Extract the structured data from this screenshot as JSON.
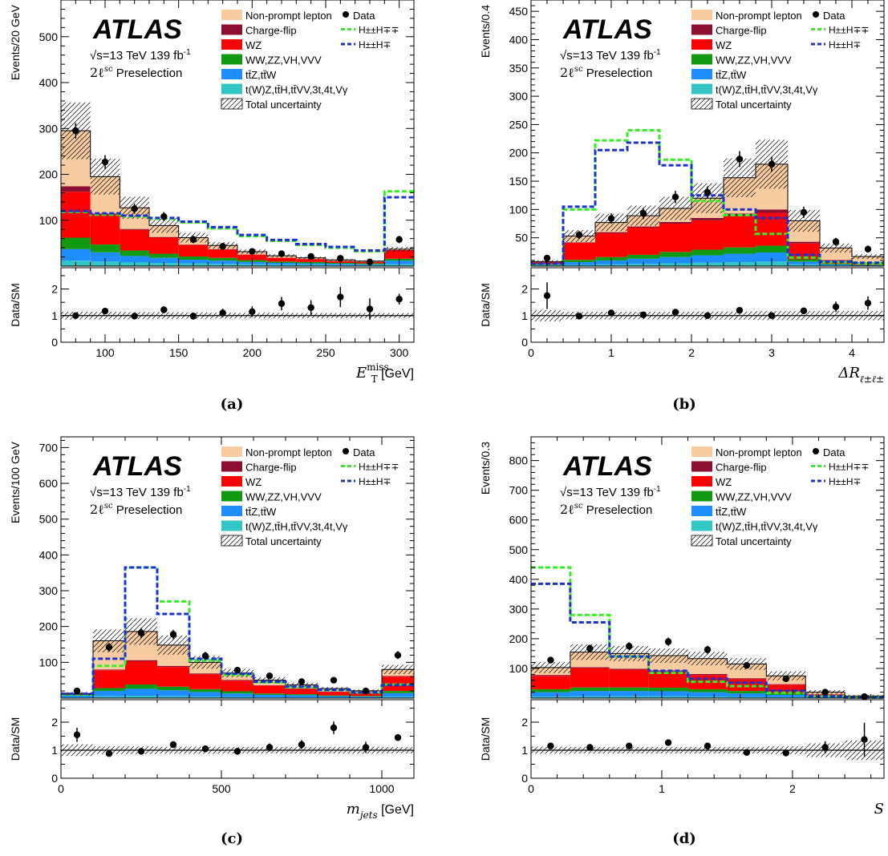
{
  "legend": {
    "atlas": "ATLAS",
    "energy_label": "√s=13 TeV 139 fb",
    "energy_sup": "-1",
    "selection_sym": "2ℓ",
    "selection_sup": "sc",
    "selection_text": "Preselection",
    "data_label": "Data",
    "uncertainty_label": "Total uncertainty",
    "backgrounds": [
      {
        "label": "Non-prompt lepton",
        "color": "#f9cba1"
      },
      {
        "label": "Charge-flip",
        "color": "#8c0f32"
      },
      {
        "label": "WZ",
        "color": "#fe0000"
      },
      {
        "label": "WW,ZZ,VH,VVV",
        "color": "#129912"
      },
      {
        "label": "tt̄Z,tt̄W",
        "color": "#1e8efe"
      },
      {
        "label": "t(W)Z,tt̄H,tt̄VV,3t,4t,Vγ",
        "color": "#33c5c5"
      }
    ],
    "signals": [
      {
        "label": "H±±H∓∓",
        "color": "#33ee22"
      },
      {
        "label": "H±±H∓",
        "color": "#1a33d0"
      }
    ]
  },
  "ratio_ylabel": "Data/SM",
  "chart_data": [
    {
      "type": "bar",
      "panel_label": "(a)",
      "ylabel": "Events/20 GeV",
      "xlabel": {
        "math": "E",
        "sub": "T",
        "sup": "miss",
        "unit": "[GeV]"
      },
      "xlim": [
        70,
        310
      ],
      "ylim": [
        0,
        580
      ],
      "ratio_ylim": [
        0,
        2.8
      ],
      "xticks": [
        100,
        150,
        200,
        250,
        300
      ],
      "xticks_minor": [
        80,
        90,
        110,
        120,
        130,
        140,
        160,
        170,
        180,
        190,
        210,
        220,
        230,
        240,
        260,
        270,
        280,
        290,
        310
      ],
      "yticks": [
        100,
        200,
        300,
        400,
        500
      ],
      "ratio_yticks": [
        0,
        1,
        2
      ],
      "bin_edges": [
        70,
        90,
        110,
        130,
        150,
        170,
        190,
        210,
        230,
        250,
        270,
        290,
        310
      ],
      "stack": [
        {
          "name": "t(W)Z,tt̄H,tt̄VV,3t,4t,Vγ",
          "values": [
            12,
            10,
            8,
            7,
            6,
            5,
            4,
            3,
            3,
            2,
            2,
            4
          ]
        },
        {
          "name": "tt̄Z,tt̄W",
          "values": [
            25,
            20,
            14,
            11,
            8,
            7,
            5,
            4,
            3,
            3,
            2,
            8
          ]
        },
        {
          "name": "WW,ZZ,VH,VVV",
          "values": [
            25,
            17,
            12,
            9,
            7,
            6,
            4,
            3,
            3,
            2,
            2,
            4
          ]
        },
        {
          "name": "WZ",
          "values": [
            100,
            65,
            45,
            35,
            25,
            18,
            12,
            8,
            6,
            4,
            3,
            18
          ]
        },
        {
          "name": "Charge-flip",
          "values": [
            12,
            3,
            2,
            1.5,
            1,
            1,
            0.5,
            0.5,
            0.5,
            0.5,
            0.5,
            1
          ]
        },
        {
          "name": "Non-prompt lepton",
          "values": [
            121,
            80,
            46,
            25,
            15,
            8,
            6,
            4,
            2.5,
            2,
            1.5,
            2
          ]
        }
      ],
      "uncertainty_frac": [
        0.21,
        0.2,
        0.19,
        0.18,
        0.17,
        0.16,
        0.15,
        0.15,
        0.14,
        0.14,
        0.14,
        0.13
      ],
      "signals": [
        {
          "name": "H±±H∓∓",
          "values": [
            118,
            112,
            108,
            103,
            95,
            82,
            65,
            55,
            46,
            40,
            32,
            163
          ]
        },
        {
          "name": "H±±H∓",
          "values": [
            120,
            115,
            110,
            105,
            97,
            85,
            68,
            57,
            48,
            42,
            34,
            150
          ]
        }
      ],
      "data": {
        "x": [
          80,
          100,
          120,
          140,
          160,
          180,
          200,
          220,
          240,
          260,
          280,
          300
        ],
        "y": [
          295,
          227,
          125,
          108,
          58,
          43,
          32,
          27,
          21,
          17,
          9,
          58
        ],
        "yerr": [
          17,
          15,
          11,
          10,
          8,
          7,
          6,
          5,
          5,
          4,
          3,
          8
        ]
      },
      "ratio": {
        "y": [
          1.0,
          1.17,
          0.98,
          1.22,
          0.98,
          1.1,
          1.15,
          1.45,
          1.3,
          1.7,
          1.25,
          1.62
        ],
        "yerr": [
          0.06,
          0.08,
          0.09,
          0.11,
          0.13,
          0.16,
          0.2,
          0.25,
          0.28,
          0.38,
          0.4,
          0.2
        ]
      }
    },
    {
      "type": "bar",
      "panel_label": "(b)",
      "ylabel": "Events/0.4",
      "xlabel": {
        "math": "ΔR",
        "sub": "ℓ±ℓ±",
        "sup": "",
        "unit": ""
      },
      "xlim": [
        0,
        4.4
      ],
      "ylim": [
        0,
        470
      ],
      "ratio_ylim": [
        0,
        2.8
      ],
      "xticks": [
        0,
        1,
        2,
        3,
        4
      ],
      "xticks_minor": [
        0.2,
        0.4,
        0.6,
        0.8,
        1.2,
        1.4,
        1.6,
        1.8,
        2.2,
        2.4,
        2.6,
        2.8,
        3.2,
        3.4,
        3.6,
        3.8,
        4.2
      ],
      "yticks": [
        50,
        100,
        150,
        200,
        250,
        300,
        350,
        400,
        450
      ],
      "ratio_yticks": [
        0,
        1,
        2
      ],
      "bin_edges": [
        0,
        0.4,
        0.8,
        1.2,
        1.6,
        2.0,
        2.4,
        2.8,
        3.2,
        3.6,
        4.0,
        4.4
      ],
      "stack": [
        {
          "name": "t(W)Z,tt̄H,tt̄VV,3t,4t,Vγ",
          "values": [
            1,
            2,
            3,
            4,
            5,
            6,
            7,
            8,
            3,
            1,
            0.5
          ]
        },
        {
          "name": "tt̄Z,tt̄W",
          "values": [
            2,
            5,
            7,
            9,
            11,
            13,
            15,
            16,
            5,
            2,
            1
          ]
        },
        {
          "name": "WW,ZZ,VH,VVV",
          "values": [
            1,
            4,
            6,
            7,
            9,
            10,
            11,
            12,
            4,
            1.5,
            1
          ]
        },
        {
          "name": "WZ",
          "values": [
            3,
            30,
            42,
            48,
            50,
            52,
            55,
            58,
            28,
            6,
            3
          ]
        },
        {
          "name": "Charge-flip",
          "values": [
            0.2,
            1,
            2,
            2,
            3,
            4,
            5,
            6,
            3,
            0.5,
            0.3
          ]
        },
        {
          "name": "Non-prompt lepton",
          "values": [
            0.8,
            11,
            17,
            19,
            24,
            35,
            63,
            80,
            37,
            21,
            11
          ]
        }
      ],
      "uncertainty_frac": [
        0.3,
        0.2,
        0.2,
        0.2,
        0.2,
        0.22,
        0.22,
        0.24,
        0.24,
        0.25,
        0.25
      ],
      "signals": [
        {
          "name": "H±±H∓∓",
          "values": [
            3,
            100,
            222,
            240,
            188,
            115,
            90,
            57,
            15,
            7,
            5
          ]
        },
        {
          "name": "H±±H∓",
          "values": [
            4,
            105,
            205,
            218,
            178,
            125,
            100,
            85,
            20,
            8,
            6
          ]
        }
      ],
      "data": {
        "x": [
          0.2,
          0.6,
          1.0,
          1.4,
          1.8,
          2.2,
          2.6,
          3.0,
          3.4,
          3.8,
          4.2
        ],
        "y": [
          14,
          55,
          84,
          93,
          122,
          130,
          189,
          180,
          95,
          43,
          30
        ],
        "yerr": [
          4,
          7,
          9,
          10,
          11,
          11,
          14,
          13,
          10,
          7,
          6
        ]
      },
      "ratio": {
        "y": [
          1.75,
          0.98,
          1.1,
          1.03,
          1.13,
          1.0,
          1.2,
          1.0,
          1.18,
          1.33,
          1.47
        ],
        "yerr": [
          0.5,
          0.12,
          0.1,
          0.1,
          0.1,
          0.09,
          0.08,
          0.07,
          0.12,
          0.2,
          0.25
        ]
      }
    },
    {
      "type": "bar",
      "panel_label": "(c)",
      "ylabel": "Events/100 GeV",
      "xlabel": {
        "math": "m",
        "sub": "jets",
        "sup": "",
        "unit": "[GeV]"
      },
      "xlim": [
        0,
        1100
      ],
      "ylim": [
        0,
        730
      ],
      "ratio_ylim": [
        0,
        2.8
      ],
      "xticks": [
        0,
        500,
        1000
      ],
      "xticks_minor": [
        100,
        200,
        300,
        400,
        600,
        700,
        800,
        900
      ],
      "yticks": [
        100,
        200,
        300,
        400,
        500,
        600,
        700
      ],
      "ratio_yticks": [
        0,
        1,
        2
      ],
      "bin_edges": [
        0,
        100,
        200,
        300,
        400,
        500,
        600,
        700,
        800,
        900,
        1000,
        1100
      ],
      "stack": [
        {
          "name": "t(W)Z,tt̄H,tt̄VV,3t,4t,Vγ",
          "values": [
            2,
            5,
            6,
            5,
            4,
            3,
            2,
            2,
            1.5,
            1,
            4
          ]
        },
        {
          "name": "tt̄Z,tt̄W",
          "values": [
            5,
            15,
            20,
            17,
            13,
            10,
            7,
            6,
            4,
            3,
            10
          ]
        },
        {
          "name": "WW,ZZ,VH,VVV",
          "values": [
            3,
            8,
            12,
            10,
            8,
            6,
            4,
            3,
            2,
            2,
            6
          ]
        },
        {
          "name": "WZ",
          "values": [
            2,
            50,
            65,
            55,
            42,
            30,
            22,
            15,
            10,
            8,
            40
          ]
        },
        {
          "name": "Charge-flip",
          "values": [
            0.2,
            2,
            3,
            3,
            2,
            2,
            1,
            1,
            1,
            0.5,
            2
          ]
        },
        {
          "name": "Non-prompt lepton",
          "values": [
            0.8,
            80,
            80,
            58,
            31,
            19,
            14,
            10,
            8,
            6,
            18
          ]
        }
      ],
      "uncertainty_frac": [
        0.3,
        0.2,
        0.2,
        0.18,
        0.18,
        0.17,
        0.17,
        0.17,
        0.17,
        0.18,
        0.16
      ],
      "signals": [
        {
          "name": "H±±H∓∓",
          "values": [
            10,
            90,
            365,
            270,
            105,
            65,
            44,
            30,
            22,
            15,
            38
          ]
        },
        {
          "name": "H±±H∓",
          "values": [
            12,
            110,
            365,
            235,
            110,
            68,
            46,
            32,
            23,
            16,
            36
          ]
        }
      ],
      "data": {
        "x": [
          50,
          150,
          250,
          350,
          450,
          550,
          650,
          750,
          850,
          950,
          1050
        ],
        "y": [
          20,
          142,
          182,
          178,
          118,
          78,
          62,
          46,
          50,
          20,
          120
        ],
        "yerr": [
          5,
          12,
          14,
          13,
          11,
          9,
          8,
          7,
          7,
          5,
          11
        ]
      },
      "ratio": {
        "y": [
          1.55,
          0.88,
          0.96,
          1.2,
          1.05,
          0.96,
          1.1,
          1.2,
          1.8,
          1.1,
          1.45
        ],
        "yerr": [
          0.25,
          0.07,
          0.07,
          0.08,
          0.1,
          0.12,
          0.14,
          0.16,
          0.22,
          0.2,
          0.12
        ]
      }
    },
    {
      "type": "bar",
      "panel_label": "(d)",
      "ylabel": "Events/0.3",
      "xlabel": {
        "math": "S",
        "sub": "",
        "sup": "",
        "unit": ""
      },
      "xlim": [
        0,
        2.7
      ],
      "ylim": [
        0,
        880
      ],
      "ratio_ylim": [
        0,
        2.8
      ],
      "xticks": [
        0,
        1,
        2
      ],
      "xticks_minor": [
        0.2,
        0.4,
        0.6,
        0.8,
        1.2,
        1.4,
        1.6,
        1.8,
        2.2,
        2.4,
        2.6
      ],
      "yticks": [
        100,
        200,
        300,
        400,
        500,
        600,
        700,
        800
      ],
      "ratio_yticks": [
        0,
        1,
        2
      ],
      "bin_edges": [
        0,
        0.3,
        0.6,
        0.9,
        1.2,
        1.5,
        1.8,
        2.1,
        2.4,
        2.7
      ],
      "stack": [
        {
          "name": "t(W)Z,tt̄H,tt̄VV,3t,4t,Vγ",
          "values": [
            5,
            6,
            6,
            6,
            5,
            4,
            3,
            1,
            0.5
          ]
        },
        {
          "name": "tt̄Z,tt̄W",
          "values": [
            15,
            18,
            18,
            17,
            15,
            12,
            8,
            3,
            1
          ]
        },
        {
          "name": "WW,ZZ,VH,VVV",
          "values": [
            10,
            12,
            12,
            12,
            10,
            8,
            6,
            2,
            1
          ]
        },
        {
          "name": "WZ",
          "values": [
            45,
            65,
            60,
            55,
            48,
            40,
            28,
            6,
            1
          ]
        },
        {
          "name": "Charge-flip",
          "values": [
            3,
            3,
            3,
            3,
            3,
            3,
            2,
            1,
            0.5
          ]
        },
        {
          "name": "Non-prompt lepton",
          "values": [
            25,
            51,
            51,
            50,
            52,
            48,
            28,
            7,
            3
          ]
        }
      ],
      "uncertainty_frac": [
        0.18,
        0.17,
        0.17,
        0.17,
        0.17,
        0.17,
        0.2,
        0.35,
        0.5
      ],
      "signals": [
        {
          "name": "H±±H∓∓",
          "values": [
            440,
            280,
            140,
            85,
            55,
            40,
            18,
            6,
            2
          ]
        },
        {
          "name": "H±±H∓",
          "values": [
            385,
            255,
            140,
            92,
            65,
            52,
            25,
            6,
            2
          ]
        }
      ],
      "data": {
        "x": [
          0.15,
          0.45,
          0.75,
          1.05,
          1.35,
          1.65,
          1.95,
          2.25,
          2.55
        ],
        "y": [
          128,
          167,
          175,
          190,
          163,
          110,
          65,
          20,
          5
        ],
        "yerr": [
          11,
          13,
          13,
          14,
          13,
          10,
          8,
          4,
          2
        ]
      },
      "ratio": {
        "y": [
          1.15,
          1.1,
          1.15,
          1.27,
          1.15,
          0.92,
          0.9,
          1.1,
          1.38
        ],
        "yerr": [
          0.07,
          0.07,
          0.07,
          0.07,
          0.08,
          0.09,
          0.1,
          0.22,
          0.6
        ]
      }
    }
  ]
}
